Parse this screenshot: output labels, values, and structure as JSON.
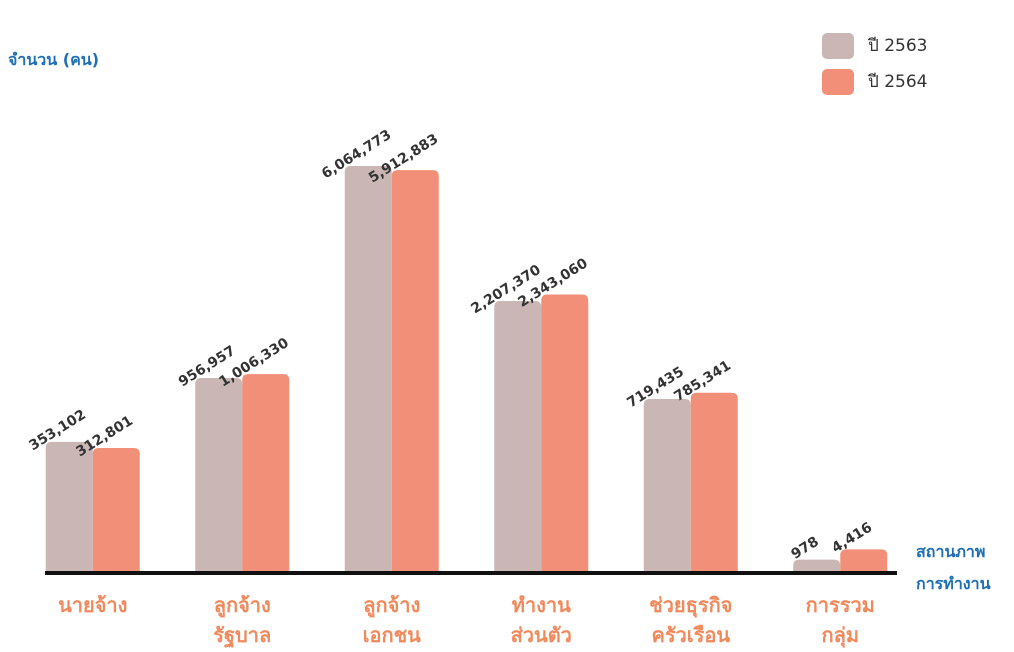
{
  "chart_data": {
    "type": "bar",
    "y_label": "จำนวน (คน)",
    "x_label": "สถานภาพ\nการทำงาน",
    "categories": [
      "นายจ้าง",
      "ลูกจ้าง\nรัฐบาล",
      "ลูกจ้าง\nเอกชน",
      "ทำงาน\nส่วนตัว",
      "ช่วยธุรกิจ\nครัวเรือน",
      "การรวม\nกลุ่ม"
    ],
    "series": [
      {
        "name": "ปี 2563",
        "color": "#c9b6b5",
        "values": [
          353102,
          956957,
          6064773,
          2207370,
          719435,
          978
        ],
        "value_labels": [
          "353,102",
          "956,957",
          "6,064,773",
          "2,207,370",
          "719,435",
          "978"
        ]
      },
      {
        "name": "ปี 2564",
        "color": "#f28f78",
        "values": [
          312801,
          1006330,
          5912883,
          2343060,
          785341,
          4416
        ],
        "value_labels": [
          "312,801",
          "1,006,330",
          "5,912,883",
          "2,343,060",
          "785,341",
          "4,416"
        ]
      }
    ],
    "legend": "top-right"
  }
}
